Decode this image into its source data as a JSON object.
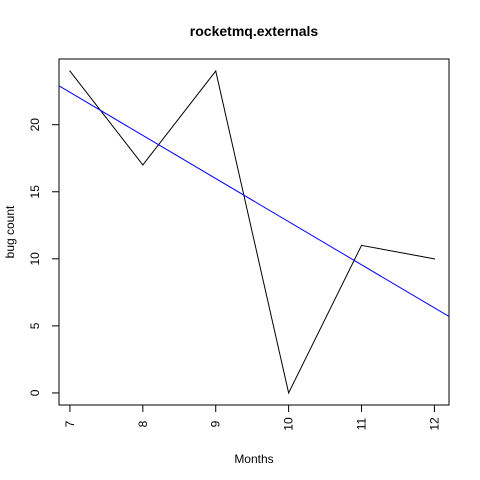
{
  "chart_data": {
    "type": "line",
    "title": "rocketmq.externals",
    "xlabel": "Months",
    "ylabel": "bug count",
    "x": [
      7,
      8,
      9,
      10,
      11,
      12
    ],
    "xticks": [
      "7",
      "8",
      "9",
      "10",
      "11",
      "12"
    ],
    "yticks": [
      "0",
      "5",
      "10",
      "15",
      "20"
    ],
    "xlim": [
      6.85,
      12.2
    ],
    "ylim": [
      -0.9,
      24.9
    ],
    "grid": false,
    "series": [
      {
        "values": [
          24,
          17,
          24,
          0,
          11,
          10
        ],
        "color": "#000000"
      }
    ],
    "trend_line": {
      "color": "#0000ff",
      "points": [
        [
          6.85,
          22.9
        ],
        [
          12.2,
          5.7
        ]
      ]
    }
  }
}
